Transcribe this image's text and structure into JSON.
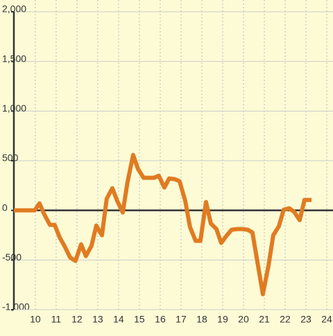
{
  "chart_data": {
    "type": "line",
    "x": [
      8.97,
      9.97,
      10.2,
      10.43,
      10.7,
      10.93,
      11.17,
      11.43,
      11.67,
      11.93,
      12.2,
      12.43,
      12.7,
      12.93,
      13.2,
      13.43,
      13.7,
      13.93,
      14.2,
      14.43,
      14.7,
      14.93,
      15.2,
      15.43,
      15.7,
      15.93,
      16.2,
      16.43,
      16.7,
      16.93,
      17.2,
      17.43,
      17.7,
      17.93,
      18.2,
      18.43,
      18.7,
      18.93,
      19.2,
      19.43,
      19.7,
      19.93,
      20.2,
      20.43,
      20.7,
      20.93,
      21.2,
      21.43,
      21.7,
      21.93,
      22.2,
      22.43,
      22.7,
      22.93,
      23.27
    ],
    "series": [
      {
        "color": "#e07b22",
        "values": [
          0,
          0,
          70,
          -40,
          -146,
          -146,
          -272,
          -370,
          -474,
          -509,
          -342,
          -460,
          -356,
          -153,
          -251,
          118,
          223,
          98,
          -21,
          286,
          558,
          418,
          328,
          328,
          328,
          349,
          230,
          321,
          314,
          293,
          98,
          -167,
          -307,
          -307,
          84,
          -132,
          -188,
          -328,
          -251,
          -195,
          -188,
          -188,
          -195,
          -223,
          -558,
          -844,
          -558,
          -251,
          -160,
          7,
          21,
          -14,
          -98,
          105,
          105
        ]
      }
    ],
    "xlim": [
      8.97,
      24.3
    ],
    "xticks": [
      10,
      11,
      12,
      13,
      14,
      15,
      16,
      17,
      18,
      19,
      20,
      21,
      22,
      23,
      24
    ],
    "ylim": [
      -1000,
      2000
    ],
    "yticks": [
      {
        "value": -1000,
        "label": "-1,000"
      },
      -500,
      0,
      500,
      {
        "value": 1000,
        "label": "1,000"
      },
      {
        "value": 1500,
        "label": "1,500"
      },
      {
        "value": 2000,
        "label": "2,000"
      }
    ],
    "grid": true
  }
}
